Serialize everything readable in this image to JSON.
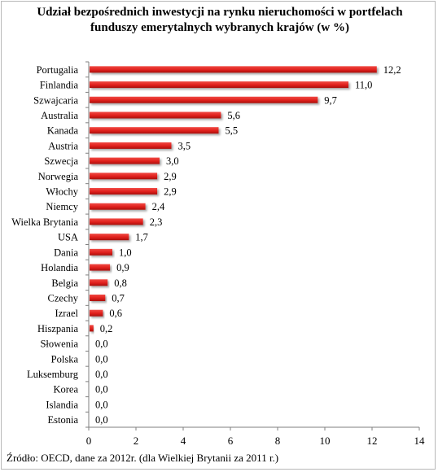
{
  "chart_data": {
    "type": "bar",
    "orientation": "horizontal",
    "title": "Udział bezpośrednich inwestycji na rynku nieruchomości w portfelach funduszy emerytalnych wybranych krajów (w %)",
    "categories": [
      "Portugalia",
      "Finlandia",
      "Szwajcaria",
      "Australia",
      "Kanada",
      "Austria",
      "Szwecja",
      "Norwegia",
      "Włochy",
      "Niemcy",
      "Wielka Brytania",
      "USA",
      "Dania",
      "Holandia",
      "Belgia",
      "Czechy",
      "Izrael",
      "Hiszpania",
      "Słowenia",
      "Polska",
      "Luksemburg",
      "Korea",
      "Islandia",
      "Estonia"
    ],
    "values": [
      12.2,
      11.0,
      9.7,
      5.6,
      5.5,
      3.5,
      3.0,
      2.9,
      2.9,
      2.4,
      2.3,
      1.7,
      1.0,
      0.9,
      0.8,
      0.7,
      0.6,
      0.2,
      0.0,
      0.0,
      0.0,
      0.0,
      0.0,
      0.0
    ],
    "value_labels": [
      "12,2",
      "11,0",
      "9,7",
      "5,6",
      "5,5",
      "3,5",
      "3,0",
      "2,9",
      "2,9",
      "2,4",
      "2,3",
      "1,7",
      "1,0",
      "0,9",
      "0,8",
      "0,7",
      "0,6",
      "0,2",
      "0,0",
      "0,0",
      "0,0",
      "0,0",
      "0,0",
      "0,0"
    ],
    "xlim": [
      0,
      14
    ],
    "xticks": [
      0,
      2,
      4,
      6,
      8,
      10,
      12,
      14
    ],
    "xlabel": "",
    "ylabel": "",
    "grid": false,
    "legend": "none",
    "bar_color": "#e0201c"
  },
  "source": "Źródło: OECD, dane za 2012r. (dla Wielkiej Brytanii za 2011 r.)"
}
